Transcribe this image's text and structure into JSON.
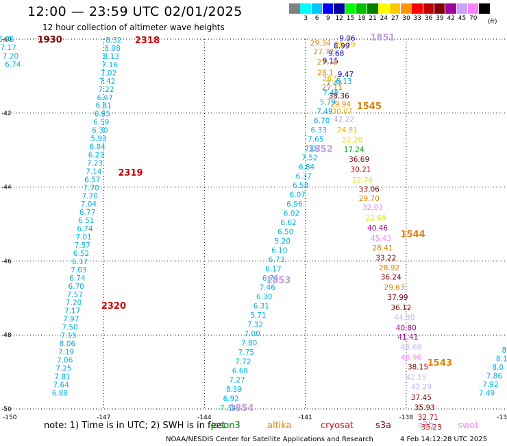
{
  "title": "12:00 — 23:59 UTC 02/01/2025",
  "subtitle": "12 hour collection of altimeter wave heights",
  "colorscale": {
    "colors": [
      "#808080",
      "#00ffff",
      "#00c8ff",
      "#0000ff",
      "#0000a0",
      "#00ff00",
      "#00c000",
      "#008000",
      "#ffff00",
      "#ffc800",
      "#ff9600",
      "#ff0000",
      "#c00000",
      "#800000",
      "#a000a0",
      "#c8a0ff",
      "#ff80ff",
      "#000000"
    ],
    "labels": [
      "3",
      "6",
      "9",
      "12",
      "15",
      "18",
      "21",
      "24",
      "27",
      "30",
      "33",
      "36",
      "39",
      "42",
      "45",
      "70"
    ],
    "unit": "(ft)"
  },
  "axes": {
    "lon_ticks": [
      {
        "label": "-150",
        "lon": -150
      },
      {
        "label": "-147",
        "lon": -147
      },
      {
        "label": "-144",
        "lon": -144
      },
      {
        "label": "-141",
        "lon": -141
      },
      {
        "label": "-138",
        "lon": -138
      },
      {
        "label": "-13",
        "lon": -135
      }
    ],
    "lat_ticks": [
      {
        "label": "-40",
        "lat": -40
      },
      {
        "label": "-42",
        "lat": -42
      },
      {
        "label": "-44",
        "lat": -44
      },
      {
        "label": "-46",
        "lat": -46
      },
      {
        "label": "-48",
        "lat": -48
      },
      {
        "label": "-50",
        "lat": -50
      }
    ]
  },
  "passes": [
    {
      "label": "1930",
      "color": "#800000",
      "lon": -148.6,
      "lat": -40.0
    },
    {
      "label": "2318",
      "color": "#d00000",
      "lon": -145.7,
      "lat": -40.02
    },
    {
      "label": "2319",
      "color": "#d00000",
      "lon": -146.2,
      "lat": -43.6
    },
    {
      "label": "2320",
      "color": "#d00000",
      "lon": -146.7,
      "lat": -47.2
    },
    {
      "label": "1851",
      "color": "#c0a0e0",
      "lon": -138.7,
      "lat": -39.94
    },
    {
      "label": "1545",
      "color": "#e08000",
      "lon": -139.1,
      "lat": -41.8
    },
    {
      "label": "1852",
      "color": "#c0a0e0",
      "lon": -140.55,
      "lat": -42.96
    },
    {
      "label": "1544",
      "color": "#e08000",
      "lon": -137.8,
      "lat": -45.26
    },
    {
      "label": "1853",
      "color": "#c0a0e0",
      "lon": -141.8,
      "lat": -46.5
    },
    {
      "label": "1543",
      "color": "#e08000",
      "lon": -137.0,
      "lat": -48.74
    },
    {
      "label": "1854",
      "color": "#c0a0e0",
      "lon": -142.9,
      "lat": -49.96
    }
  ],
  "tracks": [
    {
      "name": "west-end-track",
      "color": "#00b0e0",
      "start": [
        -149.9,
        -40.0
      ],
      "end": [
        -149.7,
        -40.68
      ],
      "values": [
        "6.95",
        "7.17",
        "7.20",
        "6.74"
      ]
    },
    {
      "name": "track-2318",
      "color": "#00b0e0",
      "start": [
        -146.7,
        -40.02
      ],
      "end": [
        -148.3,
        -49.56
      ],
      "values": [
        "8.32",
        "8.08",
        "8.13",
        "7.16",
        "7.02",
        "7.42",
        "7.22",
        "6.67",
        "6.81",
        "6.85",
        "6.59",
        "6.30",
        "5.93",
        "6.84",
        "6.23",
        "7.23",
        "7.14",
        "6.57",
        "7.70",
        "7.70",
        "7.04",
        "6.77",
        "6.51",
        "6.74",
        "7.01",
        "7.57",
        "6.52",
        "6.17",
        "7.03",
        "6.74",
        "6.70",
        "7.57",
        "7.20",
        "7.17",
        "7.97",
        "7.50",
        "7.15",
        "8.06",
        "7.19",
        "7.06",
        "7.25",
        "7.81",
        "7.64",
        "6.88"
      ]
    },
    {
      "name": "track-1852-1854",
      "color": "#00b0e0",
      "start": [
        -140.15,
        -41.2
      ],
      "end": [
        -143.3,
        -49.96
      ],
      "values": [
        "7.47",
        "7.48",
        "5.79",
        "7.49",
        "6.70",
        "6.33",
        "7.65",
        "7.07",
        "7.52",
        "6.84",
        "6.37",
        "6.58",
        "6.07",
        "6.96",
        "6.02",
        "6.62",
        "6.50",
        "5.20",
        "6.10",
        "6.73",
        "6.17",
        "6.76",
        "7.46",
        "6.30",
        "6.31",
        "5.71",
        "7.32",
        "7.00",
        "7.80",
        "7.75",
        "7.72",
        "6.68",
        "7.27",
        "8.59",
        "6.92",
        "7.34"
      ]
    },
    {
      "name": "east-blue-track",
      "color": "#0000c0",
      "start": [
        -139.75,
        -39.97
      ],
      "end": [
        -140.25,
        -40.58
      ],
      "values": [
        "9.06",
        "8.99",
        "9.68",
        "9.15"
      ]
    },
    {
      "name": "east-end-track",
      "color": "#00b0e0",
      "start": [
        -135.05,
        -48.4
      ],
      "end": [
        -135.6,
        -49.56
      ],
      "values": [
        "8.",
        "8.1",
        "8.0",
        "7.86",
        "7.92",
        "7.49"
      ]
    }
  ],
  "swh_1545": [
    {
      "v": "29.34",
      "c": "#e08000",
      "lon": -140.55,
      "lat": -40.1
    },
    {
      "v": "29.99",
      "c": "#e8b000",
      "lon": -139.82,
      "lat": -40.14
    },
    {
      "v": "27.72",
      "c": "#e08000",
      "lon": -140.45,
      "lat": -40.33
    },
    {
      "v": "27.78",
      "c": "#e08000",
      "lon": -140.35,
      "lat": -40.62
    },
    {
      "v": "28.1",
      "c": "#e08000",
      "lon": -140.4,
      "lat": -40.9
    },
    {
      "v": "9.47",
      "c": "#0000c0",
      "lon": -139.8,
      "lat": -40.95
    },
    {
      "v": "26.5",
      "c": "#e8b000",
      "lon": -140.25,
      "lat": -41.07
    },
    {
      "v": "6.13",
      "c": "#00b0e0",
      "lon": -139.85,
      "lat": -41.13
    },
    {
      "v": "27.11",
      "c": "#e08000",
      "lon": -140.2,
      "lat": -41.3
    },
    {
      "v": "38.36",
      "c": "#800000",
      "lon": -140.0,
      "lat": -41.53
    },
    {
      "v": "29.94",
      "c": "#e08000",
      "lon": -139.95,
      "lat": -41.75
    },
    {
      "v": "30.07",
      "c": "#e8b000",
      "lon": -139.9,
      "lat": -41.95
    },
    {
      "v": "42.22",
      "c": "#c0a0e0",
      "lon": -139.85,
      "lat": -42.16
    },
    {
      "v": "24.81",
      "c": "#e8b000",
      "lon": -139.75,
      "lat": -42.45
    },
    {
      "v": "22.20",
      "c": "#e8e000",
      "lon": -139.6,
      "lat": -42.72
    },
    {
      "v": "17.24",
      "c": "#00a000",
      "lon": -139.55,
      "lat": -42.98
    },
    {
      "v": "36.69",
      "c": "#800000",
      "lon": -139.4,
      "lat": -43.25
    },
    {
      "v": "30.21",
      "c": "#c00000",
      "lon": -139.35,
      "lat": -43.52
    },
    {
      "v": "22.76",
      "c": "#e8e000",
      "lon": -139.3,
      "lat": -43.8
    },
    {
      "v": "33.06",
      "c": "#800000",
      "lon": -139.1,
      "lat": -44.05
    },
    {
      "v": "29.70",
      "c": "#e08000",
      "lon": -139.1,
      "lat": -44.3
    },
    {
      "v": "32.03",
      "c": "#ff80ff",
      "lon": -139.0,
      "lat": -44.55
    },
    {
      "v": "22.69",
      "c": "#e8e000",
      "lon": -138.9,
      "lat": -44.83
    },
    {
      "v": "40.46",
      "c": "#a000a0",
      "lon": -138.85,
      "lat": -45.1
    },
    {
      "v": "45.43",
      "c": "#ff80ff",
      "lon": -138.75,
      "lat": -45.38
    },
    {
      "v": "28.41",
      "c": "#e08000",
      "lon": -138.7,
      "lat": -45.64
    },
    {
      "v": "33.22",
      "c": "#800000",
      "lon": -138.6,
      "lat": -45.91
    },
    {
      "v": "28.92",
      "c": "#e08000",
      "lon": -138.5,
      "lat": -46.18
    },
    {
      "v": "36.24",
      "c": "#800000",
      "lon": -138.45,
      "lat": -46.43
    },
    {
      "v": "29.63",
      "c": "#e08000",
      "lon": -138.35,
      "lat": -46.71
    },
    {
      "v": "37.99",
      "c": "#800000",
      "lon": -138.25,
      "lat": -46.98
    },
    {
      "v": "36.12",
      "c": "#800000",
      "lon": -138.15,
      "lat": -47.25
    },
    {
      "v": "44.30",
      "c": "#c8b0ff",
      "lon": -138.05,
      "lat": -47.52
    },
    {
      "v": "40.80",
      "c": "#a000a0",
      "lon": -138.0,
      "lat": -47.8
    },
    {
      "v": "41.41",
      "c": "#a000a0",
      "lon": -137.95,
      "lat": -48.05
    },
    {
      "v": "46.68",
      "c": "#c8b0ff",
      "lon": -137.85,
      "lat": -48.32
    },
    {
      "v": "46.96",
      "c": "#ff80ff",
      "lon": -137.85,
      "lat": -48.6
    },
    {
      "v": "38.15",
      "c": "#800000",
      "lon": -137.65,
      "lat": -48.86
    },
    {
      "v": "42.15",
      "c": "#c8b0ff",
      "lon": -137.7,
      "lat": -49.14
    },
    {
      "v": "42.29",
      "c": "#c8b0ff",
      "lon": -137.55,
      "lat": -49.4
    },
    {
      "v": "37.45",
      "c": "#800000",
      "lon": -137.55,
      "lat": -49.68
    },
    {
      "v": "35.93",
      "c": "#800000",
      "lon": -137.45,
      "lat": -49.95
    },
    {
      "v": "32.71",
      "c": "#c00000",
      "lon": -137.35,
      "lat": -50.22
    },
    {
      "v": "35.23",
      "c": "#c00000",
      "lon": -137.25,
      "lat": -50.48
    }
  ],
  "footer": {
    "note": "note:  1) Time is in UTC; 2) SWH is in feet",
    "legend": [
      {
        "name": "jason3",
        "color": "#008000"
      },
      {
        "name": "altika",
        "color": "#e08000"
      },
      {
        "name": "cryosat",
        "color": "#ff0000"
      },
      {
        "name": "s3a",
        "color": "#800000"
      },
      {
        "name": "s3b",
        "color": "#c0a0e0"
      },
      {
        "name": "swot",
        "color": "#ff80ff"
      }
    ],
    "credit": "NOAA/NESDIS Center for Satellite Applications and Research",
    "timestamp": "4 Feb 14:12:28 UTC 2025"
  }
}
